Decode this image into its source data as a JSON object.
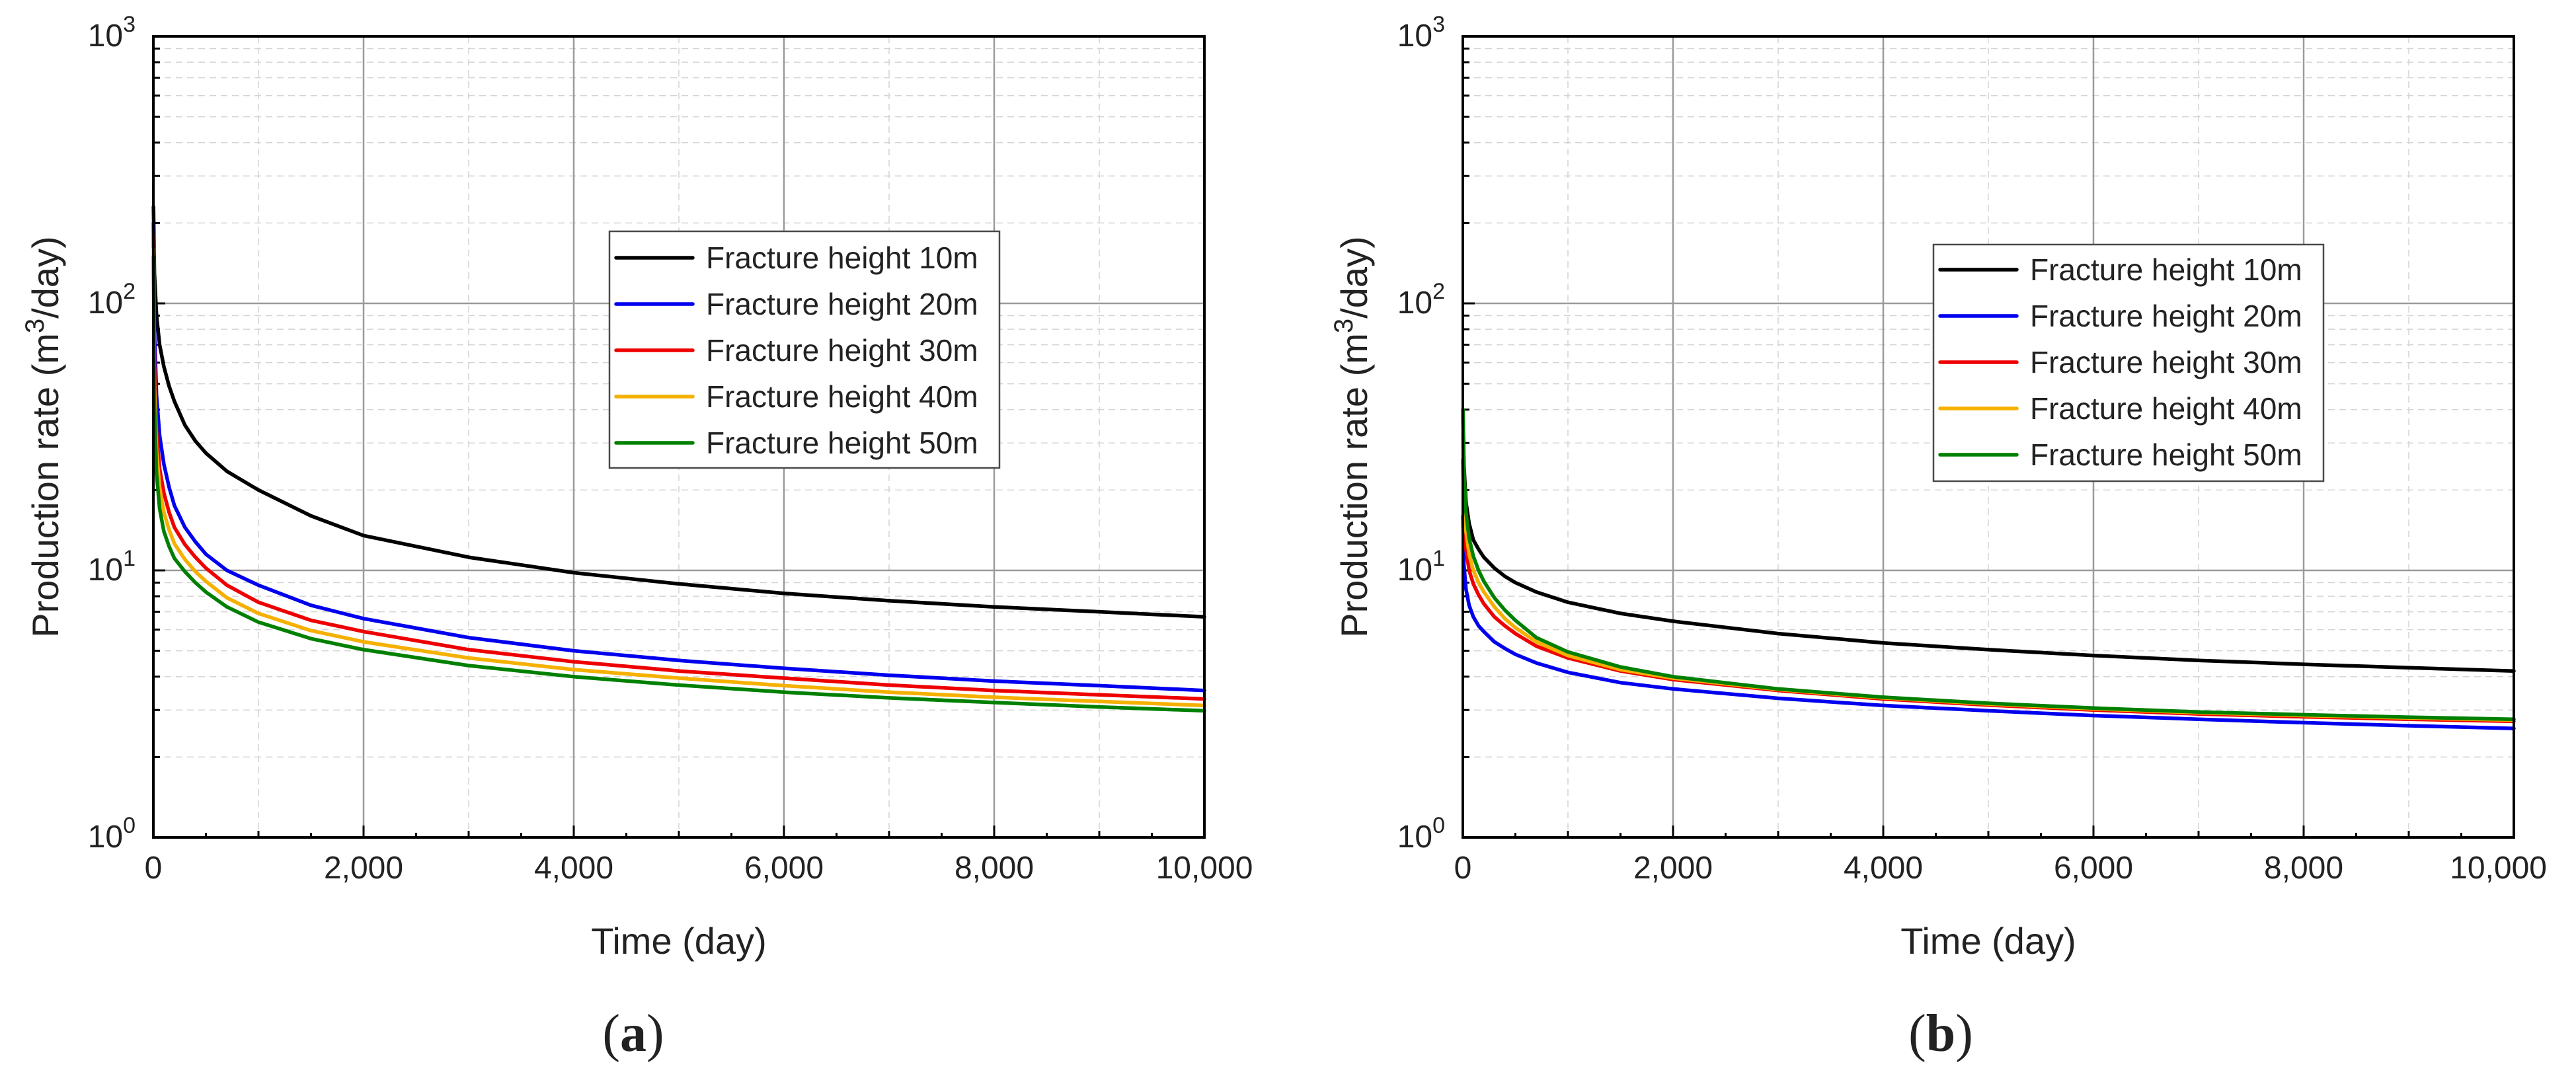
{
  "chart_data": [
    {
      "type": "line",
      "panel_label": "a",
      "xlabel": "Time (day)",
      "ylabel_main": "Production rate (m",
      "ylabel_sup": "3",
      "ylabel_tail": "/day)",
      "xlim": [
        0,
        10000
      ],
      "ylim": [
        1,
        1000
      ],
      "yscale": "log",
      "xticks": [
        0,
        2000,
        4000,
        6000,
        8000,
        10000
      ],
      "xtick_labels": [
        "0",
        "2,000",
        "4,000",
        "6,000",
        "8,000",
        "10,000"
      ],
      "ytick_base": "10",
      "ytick_exponents": [
        "0",
        "1",
        "2",
        "3"
      ],
      "grid": true,
      "legend_position": "center-right",
      "x": [
        1,
        10,
        30,
        60,
        100,
        150,
        200,
        300,
        400,
        500,
        700,
        1000,
        1500,
        2000,
        3000,
        4000,
        5000,
        6000,
        7000,
        8000,
        9000,
        10000
      ],
      "series": [
        {
          "name": "Fracture height 10m",
          "color": "#000000",
          "values": [
            230,
            130,
            90,
            70,
            58,
            49,
            43,
            35,
            30.5,
            27.5,
            23.5,
            20,
            16,
            13.5,
            11.2,
            9.8,
            8.9,
            8.2,
            7.7,
            7.3,
            7.0,
            6.7
          ]
        },
        {
          "name": "Fracture height 20m",
          "color": "#0000ee",
          "values": [
            200,
            80,
            45,
            32,
            25,
            20.5,
            17.5,
            14.5,
            12.8,
            11.5,
            10,
            8.8,
            7.4,
            6.6,
            5.6,
            5.0,
            4.6,
            4.3,
            4.05,
            3.85,
            3.7,
            3.55
          ]
        },
        {
          "name": "Fracture height 30m",
          "color": "#ee0000",
          "values": [
            180,
            60,
            33,
            24,
            19.5,
            16.5,
            14.5,
            12.5,
            11.2,
            10.2,
            8.8,
            7.6,
            6.5,
            5.9,
            5.05,
            4.55,
            4.2,
            3.95,
            3.72,
            3.55,
            3.42,
            3.3
          ]
        },
        {
          "name": "Fracture height 40m",
          "color": "#f5b000",
          "values": [
            160,
            50,
            28,
            20.5,
            16.5,
            14.2,
            12.6,
            11,
            9.9,
            9.1,
            7.9,
            6.9,
            5.95,
            5.4,
            4.7,
            4.25,
            3.95,
            3.7,
            3.5,
            3.35,
            3.23,
            3.12
          ]
        },
        {
          "name": "Fracture height 50m",
          "color": "#008000",
          "values": [
            150,
            42,
            23,
            17,
            14,
            12.3,
            11.1,
            9.9,
            9.0,
            8.3,
            7.3,
            6.4,
            5.55,
            5.05,
            4.4,
            4.0,
            3.72,
            3.5,
            3.33,
            3.2,
            3.08,
            2.98
          ]
        }
      ]
    },
    {
      "type": "line",
      "panel_label": "b",
      "xlabel": "Time (day)",
      "ylabel_main": "Production rate (m",
      "ylabel_sup": "3",
      "ylabel_tail": "/day)",
      "xlim": [
        0,
        10000
      ],
      "ylim": [
        1,
        1000
      ],
      "yscale": "log",
      "xticks": [
        0,
        2000,
        4000,
        6000,
        8000,
        10000
      ],
      "xtick_labels": [
        "0",
        "2,000",
        "4,000",
        "6,000",
        "8,000",
        "10,000"
      ],
      "ytick_base": "10",
      "ytick_exponents": [
        "0",
        "1",
        "2",
        "3"
      ],
      "grid": true,
      "legend_position": "center-right",
      "x": [
        1,
        10,
        30,
        60,
        100,
        150,
        200,
        300,
        400,
        500,
        700,
        1000,
        1500,
        2000,
        3000,
        4000,
        5000,
        6000,
        7000,
        8000,
        9000,
        10000
      ],
      "series": [
        {
          "name": "Fracture height 10m",
          "color": "#000000",
          "values": [
            40,
            25,
            18,
            15,
            13,
            12,
            11.2,
            10.2,
            9.5,
            9.0,
            8.3,
            7.6,
            6.9,
            6.45,
            5.8,
            5.35,
            5.05,
            4.8,
            4.6,
            4.45,
            4.32,
            4.2
          ]
        },
        {
          "name": "Fracture height 20m",
          "color": "#0000ee",
          "values": [
            16,
            10.5,
            8.5,
            7.4,
            6.7,
            6.2,
            5.9,
            5.4,
            5.1,
            4.85,
            4.5,
            4.15,
            3.8,
            3.6,
            3.32,
            3.12,
            2.98,
            2.86,
            2.77,
            2.69,
            2.62,
            2.56
          ]
        },
        {
          "name": "Fracture height 30m",
          "color": "#ee0000",
          "values": [
            26,
            16,
            12,
            10,
            8.9,
            8.1,
            7.5,
            6.7,
            6.2,
            5.8,
            5.2,
            4.7,
            4.2,
            3.9,
            3.55,
            3.3,
            3.13,
            3.0,
            2.9,
            2.83,
            2.77,
            2.72
          ]
        },
        {
          "name": "Fracture height 40m",
          "color": "#f5b000",
          "values": [
            33,
            20,
            14,
            11.5,
            10,
            9.0,
            8.3,
            7.3,
            6.6,
            6.1,
            5.4,
            4.8,
            4.25,
            3.95,
            3.58,
            3.33,
            3.16,
            3.03,
            2.93,
            2.86,
            2.8,
            2.75
          ]
        },
        {
          "name": "Fracture height 50m",
          "color": "#008000",
          "values": [
            40,
            24,
            16.5,
            13.2,
            11.3,
            10.0,
            9.1,
            7.9,
            7.1,
            6.5,
            5.6,
            4.95,
            4.35,
            4.0,
            3.6,
            3.35,
            3.18,
            3.05,
            2.95,
            2.88,
            2.82,
            2.77
          ]
        }
      ]
    }
  ]
}
